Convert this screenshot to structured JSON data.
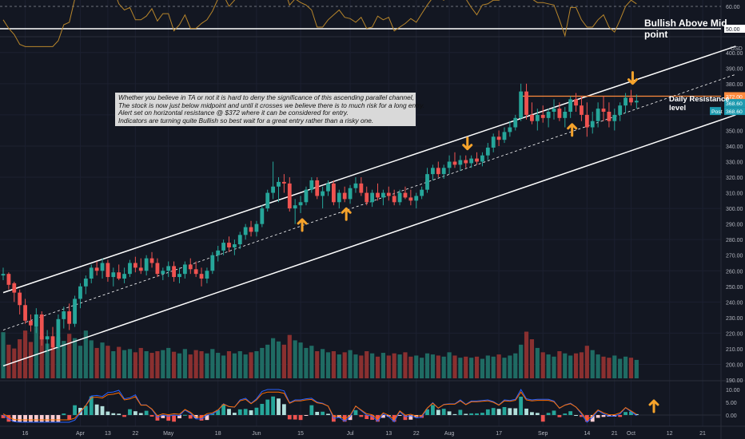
{
  "annotations": {
    "note_lines": [
      "Whether you believe in TA or not it is hard to deny the significance of this ascending parallel channel,",
      "The stock is now just below midpoint and until it crosses we believe there is to much risk for a long entry.",
      "Alert set on horizontal resistance @ $372 where it can be considered for entry.",
      "Indicators are turning quite Bullish so best wait for a great entry rather than a risky one."
    ],
    "rsi_label": "Bullish Above Mid point",
    "resistance_label": "Daily Resistance level"
  },
  "colors": {
    "background": "#131722",
    "up": "#26a69a",
    "down": "#ef5350",
    "arrow": "#f6a32b",
    "resistance": "#ff8a3c",
    "rsi": "#b8862b",
    "macd": "#2962ff",
    "signal": "#ff6d00",
    "channel": "#ffffff",
    "price_tag": "#1e9bb0"
  },
  "chart_data": [
    {
      "type": "line",
      "panel": "rsi",
      "yticks": [
        "60.00",
        "50.00"
      ],
      "level": 50,
      "level_label": "50.00"
    },
    {
      "type": "candlestick",
      "panel": "price",
      "currency_label": "USD",
      "ylim": [
        190,
        405
      ],
      "yticks": [
        "400.00",
        "390.00",
        "380.00",
        "370.00",
        "350.00",
        "340.00",
        "330.00",
        "320.00",
        "310.00",
        "300.00",
        "290.00",
        "280.00",
        "270.00",
        "260.00",
        "250.00",
        "240.00",
        "230.00",
        "220.00",
        "210.00",
        "200.00",
        "190.00"
      ],
      "price_labels": [
        {
          "label": "372.00",
          "value": 372,
          "color": "#ff8a3c"
        },
        {
          "label": "368.60",
          "value": 368.6,
          "color": "#1e9bb0"
        },
        {
          "label": "Post",
          "value": 364.5,
          "color": "#1e9bb0"
        },
        {
          "label": "368.60",
          "value": 364.5,
          "color": "#1e9bb0"
        }
      ],
      "resistance": 372,
      "channel_upper": {
        "start": [
          0,
          246
        ],
        "end": [
          133,
          404
        ]
      },
      "channel_lower": {
        "start": [
          0,
          199
        ],
        "end": [
          133,
          360
        ]
      },
      "channel_mid": {
        "start": [
          0,
          222
        ],
        "end": [
          133,
          386
        ]
      },
      "candles": [
        [
          257,
          262,
          254,
          258
        ],
        [
          258,
          259,
          248,
          251
        ],
        [
          252,
          253,
          240,
          246
        ],
        [
          246,
          248,
          232,
          238
        ],
        [
          238,
          242,
          226,
          228
        ],
        [
          228,
          232,
          221,
          225
        ],
        [
          224,
          236,
          220,
          232
        ],
        [
          232,
          234,
          212,
          216
        ],
        [
          216,
          222,
          208,
          218
        ],
        [
          218,
          224,
          209,
          211
        ],
        [
          211,
          232,
          210,
          229
        ],
        [
          229,
          237,
          223,
          234
        ],
        [
          234,
          239,
          222,
          226
        ],
        [
          226,
          244,
          224,
          242
        ],
        [
          242,
          252,
          236,
          250
        ],
        [
          250,
          257,
          245,
          255
        ],
        [
          255,
          264,
          252,
          262
        ],
        [
          262,
          266,
          257,
          260
        ],
        [
          260,
          268,
          255,
          265
        ],
        [
          265,
          267,
          253,
          256
        ],
        [
          256,
          262,
          250,
          259
        ],
        [
          259,
          264,
          254,
          255
        ],
        [
          255,
          262,
          252,
          258
        ],
        [
          258,
          267,
          256,
          265
        ],
        [
          265,
          269,
          259,
          262
        ],
        [
          262,
          268,
          258,
          260
        ],
        [
          260,
          270,
          257,
          268
        ],
        [
          268,
          272,
          262,
          265
        ],
        [
          265,
          268,
          256,
          258
        ],
        [
          258,
          262,
          254,
          260
        ],
        [
          260,
          266,
          256,
          263
        ],
        [
          263,
          266,
          253,
          256
        ],
        [
          256,
          262,
          252,
          258
        ],
        [
          258,
          266,
          255,
          264
        ],
        [
          264,
          268,
          258,
          261
        ],
        [
          261,
          266,
          256,
          258
        ],
        [
          258,
          262,
          250,
          255
        ],
        [
          255,
          262,
          252,
          260
        ],
        [
          260,
          272,
          258,
          270
        ],
        [
          270,
          276,
          266,
          273
        ],
        [
          273,
          280,
          270,
          278
        ],
        [
          278,
          282,
          272,
          275
        ],
        [
          275,
          280,
          270,
          277
        ],
        [
          277,
          285,
          274,
          283
        ],
        [
          283,
          290,
          280,
          288
        ],
        [
          288,
          292,
          282,
          285
        ],
        [
          285,
          292,
          282,
          290
        ],
        [
          290,
          302,
          288,
          300
        ],
        [
          300,
          312,
          298,
          310
        ],
        [
          310,
          330,
          306,
          314
        ],
        [
          314,
          320,
          304,
          317
        ],
        [
          317,
          322,
          310,
          316
        ],
        [
          316,
          320,
          298,
          300
        ],
        [
          300,
          306,
          290,
          302
        ],
        [
          302,
          308,
          297,
          304
        ],
        [
          304,
          314,
          302,
          312
        ],
        [
          312,
          320,
          310,
          318
        ],
        [
          318,
          320,
          306,
          308
        ],
        [
          308,
          314,
          300,
          311
        ],
        [
          311,
          318,
          308,
          316
        ],
        [
          316,
          318,
          302,
          304
        ],
        [
          304,
          312,
          300,
          310
        ],
        [
          310,
          314,
          304,
          306
        ],
        [
          306,
          315,
          303,
          313
        ],
        [
          313,
          320,
          310,
          316
        ],
        [
          316,
          320,
          308,
          310
        ],
        [
          310,
          314,
          302,
          304
        ],
        [
          304,
          312,
          301,
          310
        ],
        [
          310,
          316,
          305,
          307
        ],
        [
          307,
          312,
          302,
          310
        ],
        [
          310,
          314,
          305,
          308
        ],
        [
          308,
          312,
          302,
          304
        ],
        [
          304,
          312,
          302,
          310
        ],
        [
          310,
          314,
          306,
          307
        ],
        [
          307,
          312,
          302,
          305
        ],
        [
          305,
          310,
          300,
          308
        ],
        [
          308,
          314,
          306,
          312
        ],
        [
          312,
          326,
          310,
          322
        ],
        [
          322,
          328,
          318,
          326
        ],
        [
          326,
          330,
          320,
          322
        ],
        [
          322,
          328,
          319,
          326
        ],
        [
          326,
          334,
          322,
          330
        ],
        [
          330,
          336,
          326,
          328
        ],
        [
          328,
          334,
          324,
          331
        ],
        [
          331,
          334,
          326,
          329
        ],
        [
          329,
          334,
          326,
          332
        ],
        [
          332,
          336,
          328,
          330
        ],
        [
          330,
          336,
          327,
          334
        ],
        [
          334,
          342,
          331,
          339
        ],
        [
          339,
          348,
          336,
          346
        ],
        [
          346,
          350,
          340,
          344
        ],
        [
          344,
          352,
          342,
          349
        ],
        [
          349,
          356,
          346,
          352
        ],
        [
          352,
          360,
          350,
          358
        ],
        [
          358,
          380,
          356,
          375
        ],
        [
          375,
          380,
          357,
          360
        ],
        [
          360,
          368,
          354,
          356
        ],
        [
          356,
          364,
          350,
          360
        ],
        [
          360,
          366,
          355,
          358
        ],
        [
          358,
          364,
          352,
          362
        ],
        [
          362,
          370,
          357,
          364
        ],
        [
          364,
          368,
          356,
          358
        ],
        [
          358,
          365,
          352,
          362
        ],
        [
          362,
          372,
          358,
          370
        ],
        [
          370,
          374,
          362,
          366
        ],
        [
          366,
          372,
          356,
          360
        ],
        [
          360,
          368,
          346,
          352
        ],
        [
          352,
          362,
          348,
          356
        ],
        [
          356,
          368,
          352,
          364
        ],
        [
          364,
          372,
          356,
          362
        ],
        [
          362,
          368,
          352,
          356
        ],
        [
          356,
          364,
          350,
          360
        ],
        [
          360,
          368,
          356,
          366
        ],
        [
          366,
          374,
          361,
          371
        ],
        [
          371,
          376,
          366,
          368
        ],
        [
          368,
          373,
          364,
          369
        ]
      ],
      "volume_ratio": [
        0.85,
        0.62,
        0.55,
        0.72,
        0.88,
        0.67,
        0.94,
        0.78,
        0.64,
        0.58,
        0.76,
        0.69,
        0.82,
        0.74,
        0.6,
        0.88,
        0.7,
        0.56,
        0.66,
        0.6,
        0.5,
        0.58,
        0.52,
        0.54,
        0.48,
        0.56,
        0.5,
        0.47,
        0.5,
        0.52,
        0.56,
        0.49,
        0.46,
        0.54,
        0.44,
        0.52,
        0.5,
        0.46,
        0.54,
        0.47,
        0.42,
        0.5,
        0.46,
        0.5,
        0.44,
        0.48,
        0.5,
        0.56,
        0.62,
        0.74,
        0.68,
        0.62,
        0.8,
        0.7,
        0.66,
        0.56,
        0.6,
        0.5,
        0.54,
        0.48,
        0.5,
        0.44,
        0.48,
        0.52,
        0.44,
        0.42,
        0.5,
        0.46,
        0.4,
        0.47,
        0.42,
        0.46,
        0.44,
        0.48,
        0.4,
        0.42,
        0.38,
        0.46,
        0.44,
        0.42,
        0.4,
        0.48,
        0.42,
        0.38,
        0.4,
        0.38,
        0.4,
        0.36,
        0.42,
        0.4,
        0.44,
        0.38,
        0.42,
        0.46,
        0.62,
        0.86,
        0.72,
        0.56,
        0.48,
        0.44,
        0.4,
        0.5,
        0.46,
        0.42,
        0.46,
        0.48,
        0.6,
        0.52,
        0.44,
        0.4,
        0.38,
        0.42,
        0.36,
        0.4,
        0.38,
        0.34
      ],
      "arrows_up": [
        54,
        62,
        103
      ],
      "arrows_down": [
        84,
        114
      ],
      "xticks": [
        {
          "label": "16",
          "bar": 4
        },
        {
          "label": "Apr",
          "bar": 14
        },
        {
          "label": "13",
          "bar": 19
        },
        {
          "label": "22",
          "bar": 24
        },
        {
          "label": "May",
          "bar": 30
        },
        {
          "label": "18",
          "bar": 39
        },
        {
          "label": "Jun",
          "bar": 46
        },
        {
          "label": "15",
          "bar": 54
        },
        {
          "label": "Jul",
          "bar": 63
        },
        {
          "label": "13",
          "bar": 70
        },
        {
          "label": "22",
          "bar": 75
        },
        {
          "label": "Aug",
          "bar": 81
        },
        {
          "label": "17",
          "bar": 90
        },
        {
          "label": "Sep",
          "bar": 98
        },
        {
          "label": "14",
          "bar": 106
        },
        {
          "label": "21",
          "bar": 111
        },
        {
          "label": "Oct",
          "bar": 114
        },
        {
          "label": "12",
          "bar": 121
        },
        {
          "label": "21",
          "bar": 127
        }
      ]
    },
    {
      "type": "bar",
      "panel": "macd",
      "ylim": [
        -3,
        11
      ],
      "yticks": [
        "10.00",
        "5.00",
        "0.00"
      ]
    }
  ]
}
